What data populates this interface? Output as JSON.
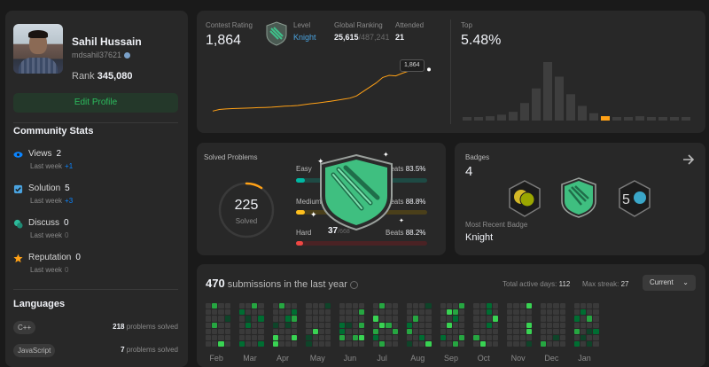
{
  "profile": {
    "name": "Sahil Hussain",
    "username": "mdsahil37621",
    "rank_label": "Rank",
    "rank_value": "345,080",
    "edit_label": "Edit Profile"
  },
  "community": {
    "title": "Community Stats",
    "items": [
      {
        "label": "Views",
        "value": "2",
        "lastweek": "Last week",
        "delta": "+1",
        "delta_color": "#0a84ff"
      },
      {
        "label": "Solution",
        "value": "5",
        "lastweek": "Last week",
        "delta": "+3",
        "delta_color": "#0a84ff"
      },
      {
        "label": "Discuss",
        "value": "0",
        "lastweek": "Last week",
        "delta": "0",
        "delta_color": "#6b6b6b"
      },
      {
        "label": "Reputation",
        "value": "0",
        "lastweek": "Last week",
        "delta": "0",
        "delta_color": "#6b6b6b"
      }
    ]
  },
  "languages": {
    "title": "Languages",
    "items": [
      {
        "name": "C++",
        "count": "218",
        "suffix": "problems solved"
      },
      {
        "name": "JavaScript",
        "count": "7",
        "suffix": "problems solved"
      }
    ]
  },
  "contest": {
    "rating_label": "Contest Rating",
    "rating_value": "1,864",
    "level_label": "Level",
    "level_value": "Knight",
    "global_label": "Global Ranking",
    "global_value": "25,615",
    "global_total": "/487,241",
    "attended_label": "Attended",
    "attended_value": "21",
    "tooltip": "1,864",
    "top_label": "Top",
    "top_value": "5.48%",
    "rating_points": [
      1480,
      1495,
      1500,
      1503,
      1505,
      1507,
      1510,
      1512,
      1514,
      1516,
      1520,
      1525,
      1528,
      1532,
      1540,
      1548,
      1555,
      1562,
      1570,
      1580,
      1590,
      1600,
      1620,
      1660,
      1700,
      1740,
      1790,
      1810,
      1805,
      1830,
      1850,
      1860,
      1864
    ],
    "hist_values": [
      2,
      2,
      3,
      4,
      6,
      12,
      22,
      40,
      30,
      18,
      10,
      5,
      3,
      2,
      2,
      3,
      2,
      2,
      2,
      2
    ]
  },
  "solved": {
    "title": "Solved Problems",
    "total": "225",
    "total_label": "Solved",
    "easy_label": "Easy",
    "easy_beats": "83.5%",
    "medium_label": "Medium",
    "medium_beats": "88.8%",
    "hard_label": "Hard",
    "hard_beats": "88.2%",
    "beats_label": "Beats",
    "hard_count": "37",
    "hard_total": "/668"
  },
  "badges": {
    "title": "Badges",
    "count": "4",
    "recent_label": "Most Recent Badge",
    "recent_value": "Knight"
  },
  "submissions": {
    "count": "470",
    "label": "submissions in the last year",
    "active_label": "Total active days:",
    "active_value": "112",
    "streak_label": "Max streak:",
    "streak_value": "27",
    "dropdown": "Current",
    "months": [
      "Feb",
      "Mar",
      "Apr",
      "May",
      "Jun",
      "Jul",
      "Aug",
      "Sep",
      "Oct",
      "Nov",
      "Dec",
      "Jan"
    ]
  },
  "colors": {
    "accent": "#ffa116",
    "easy": "#00b8a3",
    "medium": "#ffc01e",
    "hard": "#ef4743",
    "green": "#2cbb5d"
  }
}
